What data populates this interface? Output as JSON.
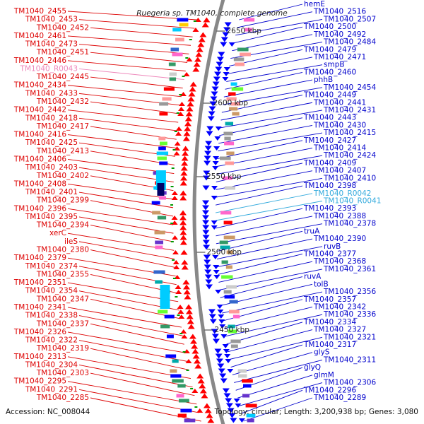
{
  "title": "Ruegeria sp. TM1040, complete genome",
  "footer": {
    "accession": "Accession: NC_008044",
    "summary": "Topology: circular; Length: 3,200,938 bp; Genes: 3,080"
  },
  "colors": {
    "left_label": "#dd0000",
    "left_rna_label": "#ee88bb",
    "right_label": "#0000cc",
    "right_rna_label": "#33aadd",
    "backbone": "#888888",
    "tick": "#009900"
  },
  "ticks": [
    {
      "label": "2650 kbp"
    },
    {
      "label": "2600 kbp"
    },
    {
      "label": "2550 kbp"
    },
    {
      "label": "2500 kbp"
    },
    {
      "label": "2450 kbp"
    }
  ],
  "left_labels": [
    {
      "text": "TM1040_2455"
    },
    {
      "text": "TM1040_2453"
    },
    {
      "text": "TM1040_2452"
    },
    {
      "text": "TM1040_2461"
    },
    {
      "text": "TM1040_2473"
    },
    {
      "text": "TM1040_2451"
    },
    {
      "text": "TM1040_2446"
    },
    {
      "text": "TM1040_R0043",
      "kind": "rna"
    },
    {
      "text": "TM1040_2445"
    },
    {
      "text": "TM1040_2434"
    },
    {
      "text": "TM1040_2433"
    },
    {
      "text": "TM1040_2432"
    },
    {
      "text": "TM1040_2442"
    },
    {
      "text": "TM1040_2418"
    },
    {
      "text": "TM1040_2417"
    },
    {
      "text": "TM1040_2416"
    },
    {
      "text": "TM1040_2425"
    },
    {
      "text": "TM1040_2413"
    },
    {
      "text": "TM1040_2406"
    },
    {
      "text": "TM1040_2403"
    },
    {
      "text": "TM1040_2402"
    },
    {
      "text": "TM1040_2408"
    },
    {
      "text": "TM1040_2401"
    },
    {
      "text": "TM1040_2399"
    },
    {
      "text": "TM1040_2396"
    },
    {
      "text": "TM1040_2395"
    },
    {
      "text": "TM1040_2394"
    },
    {
      "text": "xerC"
    },
    {
      "text": "ileS"
    },
    {
      "text": "TM1040_2380"
    },
    {
      "text": "TM1040_2379"
    },
    {
      "text": "TM1040_2374"
    },
    {
      "text": "TM1040_2355"
    },
    {
      "text": "TM1040_2351"
    },
    {
      "text": "TM1040_2354"
    },
    {
      "text": "TM1040_2347"
    },
    {
      "text": "TM1040_2341"
    },
    {
      "text": "TM1040_2338"
    },
    {
      "text": "TM1040_2337"
    },
    {
      "text": "TM1040_2326"
    },
    {
      "text": "TM1040_2322"
    },
    {
      "text": "TM1040_2319"
    },
    {
      "text": "TM1040_2313"
    },
    {
      "text": "TM1040_2304"
    },
    {
      "text": "TM1040_2303"
    },
    {
      "text": "TM1040_2295"
    },
    {
      "text": "TM1040_2291"
    },
    {
      "text": "TM1040_2285"
    }
  ],
  "right_labels": [
    {
      "text": "hemE"
    },
    {
      "text": "TM1040_2516"
    },
    {
      "text": "TM1040_2507"
    },
    {
      "text": "TM1040_2500"
    },
    {
      "text": "TM1040_2492"
    },
    {
      "text": "TM1040_2484"
    },
    {
      "text": "TM1040_2479"
    },
    {
      "text": "TM1040_2471"
    },
    {
      "text": "smpB"
    },
    {
      "text": "TM1040_2460"
    },
    {
      "text": "phhB"
    },
    {
      "text": "TM1040_2454"
    },
    {
      "text": "TM1040_2449"
    },
    {
      "text": "TM1040_2441"
    },
    {
      "text": "TM1040_2431"
    },
    {
      "text": "TM1040_2443"
    },
    {
      "text": "TM1040_2430"
    },
    {
      "text": "TM1040_2415"
    },
    {
      "text": "TM1040_2427"
    },
    {
      "text": "TM1040_2414"
    },
    {
      "text": "TM1040_2424"
    },
    {
      "text": "TM1040_2409"
    },
    {
      "text": "TM1040_2407"
    },
    {
      "text": "TM1040_2410"
    },
    {
      "text": "TM1040_2398"
    },
    {
      "text": "TM1040_R0042",
      "kind": "rna"
    },
    {
      "text": "TM1040_R0041",
      "kind": "rna"
    },
    {
      "text": "TM1040_2393"
    },
    {
      "text": "TM1040_2388"
    },
    {
      "text": "TM1040_2378"
    },
    {
      "text": "truA"
    },
    {
      "text": "TM1040_2390"
    },
    {
      "text": "ruvB"
    },
    {
      "text": "TM1040_2377"
    },
    {
      "text": "TM1040_2368"
    },
    {
      "text": "TM1040_2361"
    },
    {
      "text": "ruvA"
    },
    {
      "text": "tolB"
    },
    {
      "text": "TM1040_2356"
    },
    {
      "text": "TM1040_2357"
    },
    {
      "text": "TM1040_2342"
    },
    {
      "text": "TM1040_2336"
    },
    {
      "text": "TM1040_2334"
    },
    {
      "text": "TM1040_2327"
    },
    {
      "text": "TM1040_2321"
    },
    {
      "text": "TM1040_2317"
    },
    {
      "text": "glyS"
    },
    {
      "text": "TM1040_2311"
    },
    {
      "text": "glyQ"
    },
    {
      "text": "glmM"
    },
    {
      "text": "TM1040_2306"
    },
    {
      "text": "TM1040_2296"
    },
    {
      "text": "TM1040_2289"
    }
  ]
}
